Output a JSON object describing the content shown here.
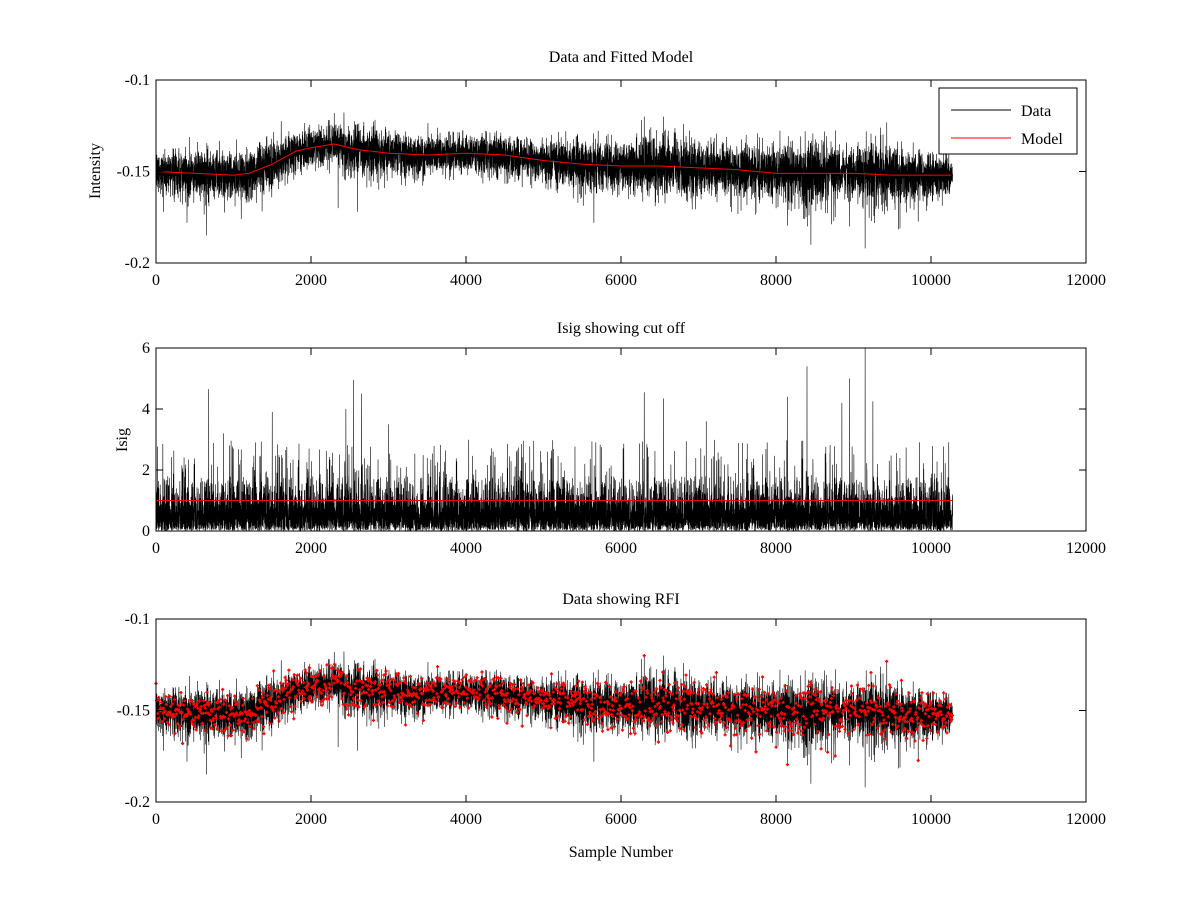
{
  "figure": {
    "background": "#ffffff"
  },
  "chart_data": [
    {
      "type": "line",
      "title": "Data and Fitted Model",
      "xlabel": "",
      "ylabel": "Intensity",
      "xlim": [
        0,
        12000
      ],
      "ylim": [
        -0.2,
        -0.1
      ],
      "xticks": [
        0,
        2000,
        4000,
        6000,
        8000,
        10000,
        12000
      ],
      "xtick_labels": [
        "0",
        "2000",
        "4000",
        "6000",
        "8000",
        "10000",
        "12000"
      ],
      "yticks": [
        -0.2,
        -0.15,
        -0.1
      ],
      "ytick_labels": [
        "-0.2",
        "-0.15",
        "-0.1"
      ],
      "legend_position": "top-right",
      "grid": false,
      "n_samples": 10280,
      "series": [
        {
          "name": "Data",
          "color": "#000000",
          "style": "line",
          "description": "noisy intensity samples around the model, roughly ±0.015",
          "envelope": {
            "x": [
              0,
              1000,
              1200,
              1500,
              1700,
              2000,
              2300,
              2600,
              3000,
              3500,
              4000,
              4500,
              5000,
              5600,
              6000,
              6300,
              6600,
              7000,
              7500,
              8000,
              8500,
              9000,
              9200,
              10280
            ],
            "min": [
              -0.166,
              -0.172,
              -0.176,
              -0.168,
              -0.155,
              -0.15,
              -0.148,
              -0.16,
              -0.158,
              -0.155,
              -0.155,
              -0.157,
              -0.16,
              -0.17,
              -0.165,
              -0.16,
              -0.165,
              -0.17,
              -0.172,
              -0.175,
              -0.185,
              -0.17,
              -0.19,
              -0.162
            ],
            "max": [
              -0.138,
              -0.14,
              -0.14,
              -0.136,
              -0.128,
              -0.124,
              -0.12,
              -0.125,
              -0.128,
              -0.128,
              -0.13,
              -0.13,
              -0.134,
              -0.134,
              -0.13,
              -0.12,
              -0.124,
              -0.134,
              -0.136,
              -0.138,
              -0.138,
              -0.14,
              -0.14,
              -0.14
            ]
          },
          "spikes": [
            {
              "x": 400,
              "y": -0.178
            },
            {
              "x": 650,
              "y": -0.185
            },
            {
              "x": 1100,
              "y": -0.176
            },
            {
              "x": 2350,
              "y": -0.17
            },
            {
              "x": 2600,
              "y": -0.172
            },
            {
              "x": 5650,
              "y": -0.178
            },
            {
              "x": 8450,
              "y": -0.19
            },
            {
              "x": 8950,
              "y": -0.18
            },
            {
              "x": 9150,
              "y": -0.192
            },
            {
              "x": 2300,
              "y": -0.118
            },
            {
              "x": 6300,
              "y": -0.12
            },
            {
              "x": 6550,
              "y": -0.12
            }
          ]
        },
        {
          "name": "Model",
          "color": "#ff0000",
          "style": "line",
          "x": [
            0,
            500,
            1000,
            1200,
            1500,
            1800,
            2000,
            2300,
            2600,
            3000,
            3500,
            4000,
            4500,
            5000,
            5500,
            6000,
            6500,
            7000,
            7500,
            8000,
            8500,
            9000,
            9500,
            10280
          ],
          "y": [
            -0.15,
            -0.151,
            -0.152,
            -0.151,
            -0.146,
            -0.139,
            -0.137,
            -0.135,
            -0.138,
            -0.14,
            -0.141,
            -0.14,
            -0.141,
            -0.144,
            -0.146,
            -0.147,
            -0.147,
            -0.148,
            -0.149,
            -0.151,
            -0.151,
            -0.151,
            -0.152,
            -0.152
          ]
        }
      ]
    },
    {
      "type": "line",
      "title": "Isig showing cut off",
      "xlabel": "",
      "ylabel": "Isig",
      "xlim": [
        0,
        12000
      ],
      "ylim": [
        0,
        6
      ],
      "xticks": [
        0,
        2000,
        4000,
        6000,
        8000,
        10000,
        12000
      ],
      "xtick_labels": [
        "0",
        "2000",
        "4000",
        "6000",
        "8000",
        "10000",
        "12000"
      ],
      "yticks": [
        0,
        2,
        4,
        6
      ],
      "ytick_labels": [
        "0",
        "2",
        "4",
        "6"
      ],
      "grid": false,
      "n_samples": 10280,
      "series": [
        {
          "name": "",
          "color": "#000000",
          "style": "line",
          "description": "dense normalized deviation values between 0 and ~2 with tall spikes",
          "typical_max": 1.8,
          "spikes": [
            {
              "x": 680,
              "y": 4.65
            },
            {
              "x": 870,
              "y": 3.2
            },
            {
              "x": 1500,
              "y": 3.9
            },
            {
              "x": 2450,
              "y": 4.0
            },
            {
              "x": 2550,
              "y": 4.95
            },
            {
              "x": 2650,
              "y": 4.5
            },
            {
              "x": 3000,
              "y": 3.5
            },
            {
              "x": 6300,
              "y": 4.55
            },
            {
              "x": 6550,
              "y": 4.35
            },
            {
              "x": 7100,
              "y": 3.6
            },
            {
              "x": 8400,
              "y": 5.4
            },
            {
              "x": 8150,
              "y": 4.4
            },
            {
              "x": 8850,
              "y": 4.2
            },
            {
              "x": 8950,
              "y": 5.0
            },
            {
              "x": 9150,
              "y": 6.0
            },
            {
              "x": 9250,
              "y": 4.25
            }
          ]
        },
        {
          "name": "",
          "color": "#ff0000",
          "style": "line",
          "x": [
            0,
            10280
          ],
          "y": [
            1.0,
            1.0
          ]
        }
      ]
    },
    {
      "type": "line",
      "title": "Data showing RFI",
      "xlabel": "Sample Number",
      "ylabel": "",
      "xlim": [
        0,
        12000
      ],
      "ylim": [
        -0.2,
        -0.1
      ],
      "xticks": [
        0,
        2000,
        4000,
        6000,
        8000,
        10000,
        12000
      ],
      "xtick_labels": [
        "0",
        "2000",
        "4000",
        "6000",
        "8000",
        "10000",
        "12000"
      ],
      "yticks": [
        -0.2,
        -0.15,
        -0.1
      ],
      "ytick_labels": [
        "-0.2",
        "-0.15",
        "-0.1"
      ],
      "grid": false,
      "n_samples": 10280,
      "series": [
        {
          "name": "",
          "color": "#000000",
          "style": "line",
          "description": "same intensity data as top panel"
        },
        {
          "name": "",
          "color": "#ff0000",
          "style": "markers",
          "marker": "point",
          "description": "samples flagged as RFI overlaid in red"
        }
      ]
    }
  ]
}
